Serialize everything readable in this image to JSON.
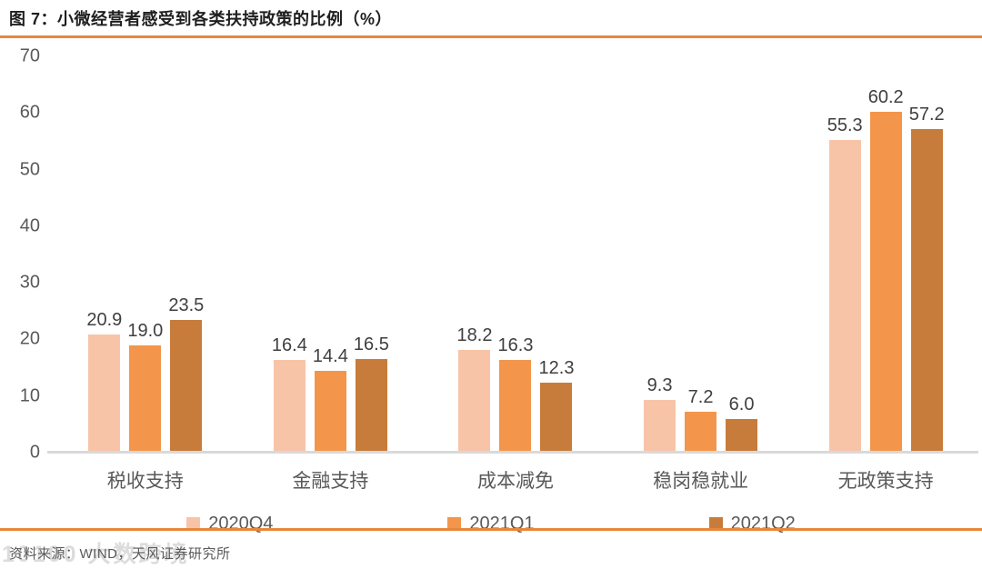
{
  "chart_data": {
    "type": "bar",
    "title": "图 7：小微经营者感受到各类扶持政策的比例（%）",
    "categories": [
      "税收支持",
      "金融支持",
      "成本减免",
      "稳岗稳就业",
      "无政策支持"
    ],
    "series": [
      {
        "name": "2020Q4",
        "color": "#f8c4a8",
        "values": [
          20.9,
          16.4,
          18.2,
          9.3,
          55.3
        ]
      },
      {
        "name": "2021Q1",
        "color": "#f3964b",
        "values": [
          19.0,
          14.4,
          16.3,
          7.2,
          60.2
        ]
      },
      {
        "name": "2021Q2",
        "color": "#c87c3c",
        "values": [
          23.5,
          16.5,
          12.3,
          6.0,
          57.2
        ]
      }
    ],
    "ylim": [
      0,
      70
    ],
    "yticks": [
      70,
      60,
      50,
      40,
      30,
      20,
      10,
      0
    ],
    "grid": false,
    "legend_position": "bottom",
    "value_label_decimals": 1
  },
  "colors": {
    "accent_rule": "#e8873c",
    "axis_line": "#d9d9d9",
    "tick_text": "#595959",
    "value_text": "#3f3f3f",
    "title_text": "#1f1f1f"
  },
  "footer": {
    "source": "资料来源：WIND，天风证券研究所",
    "watermark": "10100 大数跨境"
  }
}
